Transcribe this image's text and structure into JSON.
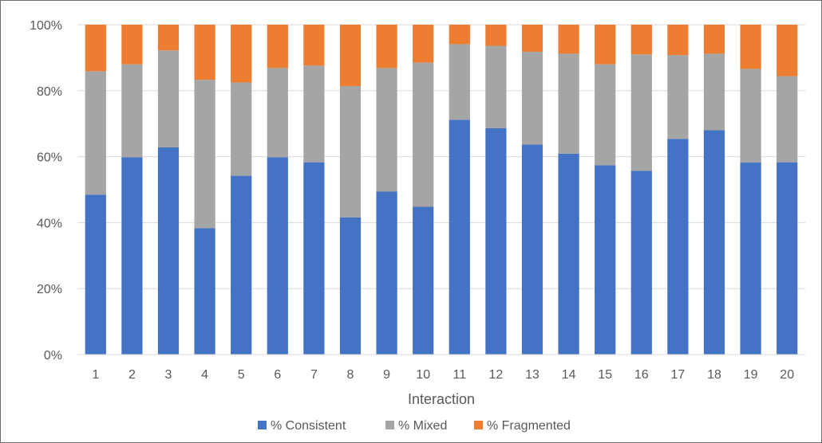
{
  "chart_data": {
    "type": "bar",
    "stacked": true,
    "percent_stacked": true,
    "xlabel": "Interaction",
    "ylabel": "",
    "ylim": [
      0,
      100
    ],
    "y_tick_labels": [
      "0%",
      "20%",
      "40%",
      "60%",
      "80%",
      "100%"
    ],
    "categories": [
      "1",
      "2",
      "3",
      "4",
      "5",
      "6",
      "7",
      "8",
      "9",
      "10",
      "11",
      "12",
      "13",
      "14",
      "15",
      "16",
      "17",
      "18",
      "19",
      "20"
    ],
    "grid": true,
    "legend_position": "bottom",
    "series": [
      {
        "name": "% Consistent",
        "color": "#4472C4",
        "values": [
          48.5,
          59.8,
          62.8,
          38.3,
          54.2,
          59.8,
          58.3,
          41.6,
          49.4,
          44.8,
          71.2,
          68.6,
          63.7,
          60.9,
          57.4,
          55.7,
          65.4,
          68.0,
          58.2,
          58.3
        ]
      },
      {
        "name": "% Mixed",
        "color": "#A5A5A5",
        "values": [
          37.4,
          28.2,
          29.4,
          45.0,
          28.3,
          27.1,
          29.3,
          39.8,
          37.5,
          43.7,
          22.9,
          25.0,
          28.1,
          30.3,
          30.6,
          35.3,
          25.4,
          23.2,
          28.4,
          26.1
        ]
      },
      {
        "name": "% Fragmented",
        "color": "#ED7D31",
        "values": [
          14.1,
          12.0,
          7.8,
          16.7,
          17.5,
          13.1,
          12.4,
          18.6,
          13.1,
          11.5,
          5.9,
          6.4,
          8.2,
          8.8,
          12.0,
          9.0,
          9.2,
          8.8,
          13.4,
          15.6
        ]
      }
    ]
  }
}
